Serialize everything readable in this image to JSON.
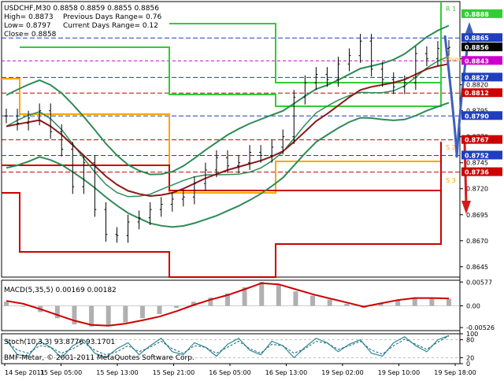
{
  "info": {
    "line1": "USDCHF,M30  0.8858 0.8859 0.8855 0.8856",
    "line2": "High= 0.8873",
    "line2b": "Previous Days Range= 0.76",
    "line3": "Low= 0.8797",
    "line3b": "Current Days Range= 0.12",
    "line4": "Close= 0.8858"
  },
  "pivot_labels": {
    "r1": "R 1",
    "s2": "S 2",
    "s3": "S 3",
    "pivot": "Pivot"
  },
  "copyright": "BMF-Metar, © 2001-2011 MetaQuotes Software Corp.",
  "colors": {
    "price": "#000000",
    "ma_slow": "#8b1a1a",
    "bands": "#2e8b57",
    "pivot_green": "#32cd32",
    "pivot_orange": "#ffa500",
    "pivot_red": "#cc0000",
    "arrow_up": "#3f5fbf",
    "arrow_down": "#d41b1b",
    "macd": "#cc0000",
    "stoch_main": "#2e8b8b",
    "stoch_signal": "#1f5f8f",
    "magenta": "#cc00cc"
  },
  "chart_data": [
    {
      "type": "line",
      "title": "USDCHF,M30",
      "x_labels": [
        "14 Sep 2011",
        "15 Sep 05:00",
        "15 Sep 13:00",
        "15 Sep 21:00",
        "16 Sep 05:00",
        "16 Sep 13:00",
        "19 Sep 02:00",
        "19 Sep 10:00",
        "19 Sep 18:00"
      ],
      "y_ticks": [
        0.8645,
        0.867,
        0.8695,
        0.872,
        0.8745,
        0.877,
        0.8795,
        0.882,
        0.8845
      ],
      "ylim": [
        0.8635,
        0.89
      ],
      "price_tags": [
        {
          "value": "0.8888",
          "color": "#32cd32"
        },
        {
          "value": "0.8865",
          "color": "#1f3fbf"
        },
        {
          "value": "0.8856",
          "color": "#000000"
        },
        {
          "value": "0.8843",
          "color": "#cc00cc"
        },
        {
          "value": "0.8827",
          "color": "#1f3fbf"
        },
        {
          "value": "0.8812",
          "color": "#cc0000"
        },
        {
          "value": "0.8790",
          "color": "#1f3fbf"
        },
        {
          "value": "0.8767",
          "color": "#cc0000"
        },
        {
          "value": "0.8752",
          "color": "#1f3fbf"
        },
        {
          "value": "0.8736",
          "color": "#cc0000"
        }
      ],
      "series": [
        {
          "name": "Close",
          "values": [
            0.879,
            0.8783,
            0.8788,
            0.8795,
            0.8775,
            0.8758,
            0.8722,
            0.8745,
            0.87,
            0.8676,
            0.8675,
            0.8688,
            0.8692,
            0.87,
            0.8705,
            0.871,
            0.8712,
            0.8725,
            0.8738,
            0.875,
            0.8742,
            0.8745,
            0.8755,
            0.8752,
            0.876,
            0.877,
            0.8808,
            0.8822,
            0.883,
            0.8825,
            0.884,
            0.8848,
            0.8862,
            0.8835,
            0.8825,
            0.8818,
            0.8822,
            0.885,
            0.8845,
            0.8855,
            0.8856
          ]
        },
        {
          "name": "MA",
          "values": [
            0.878,
            0.8782,
            0.8784,
            0.8786,
            0.878,
            0.8772,
            0.8762,
            0.8752,
            0.8742,
            0.8732,
            0.8724,
            0.8718,
            0.8715,
            0.8713,
            0.8714,
            0.8716,
            0.872,
            0.8725,
            0.873,
            0.8734,
            0.8738,
            0.8741,
            0.8744,
            0.8747,
            0.8751,
            0.8756,
            0.8765,
            0.8775,
            0.8785,
            0.8792,
            0.88,
            0.8808,
            0.8815,
            0.8818,
            0.882,
            0.8822,
            0.8825,
            0.883,
            0.8835,
            0.8838,
            0.884
          ]
        }
      ]
    },
    {
      "type": "bar",
      "title": "MACD(5,35,5) 0.00169 0.00182",
      "y_ticks": [
        0.00577,
        0.0,
        -0.00526
      ],
      "y_tick_labels": [
        "0.00577",
        "0.00",
        "-0.00526"
      ],
      "ylim": [
        -0.006,
        0.0062
      ],
      "series": [
        {
          "name": "MACD",
          "values": [
            0.001,
            0.0,
            -0.0015,
            -0.003,
            -0.0045,
            -0.005,
            -0.0048,
            -0.004,
            -0.003,
            -0.002,
            -0.0005,
            0.001,
            0.002,
            0.003,
            0.0045,
            0.0058,
            0.005,
            0.0035,
            0.0025,
            0.0015,
            0.0005,
            -0.0005,
            0.0005,
            0.0015,
            0.002,
            0.0018,
            0.0017
          ]
        },
        {
          "name": "Signal",
          "values": [
            0.0012,
            0.0005,
            -0.0008,
            -0.0022,
            -0.0036,
            -0.0046,
            -0.0048,
            -0.0043,
            -0.0035,
            -0.0026,
            -0.0013,
            0.0002,
            0.0015,
            0.0026,
            0.004,
            0.0055,
            0.0052,
            0.004,
            0.0028,
            0.0018,
            0.0008,
            -0.0002,
            0.0006,
            0.0014,
            0.0019,
            0.0019,
            0.0018
          ]
        }
      ]
    },
    {
      "type": "line",
      "title": "Stoch(10,3,3) 93.8776 93.1701",
      "y_ticks": [
        100,
        80,
        20,
        0
      ],
      "ylim": [
        0,
        100
      ],
      "series": [
        {
          "name": "Main",
          "values": [
            80,
            30,
            25,
            75,
            55,
            20,
            60,
            80,
            35,
            20,
            50,
            70,
            30,
            60,
            85,
            40,
            30,
            70,
            55,
            25,
            65,
            85,
            45,
            30,
            75,
            60,
            20,
            55,
            85,
            70,
            40,
            65,
            80,
            35,
            25,
            70,
            90,
            60,
            40,
            80,
            94
          ]
        },
        {
          "name": "Signal",
          "values": [
            75,
            45,
            35,
            60,
            55,
            35,
            50,
            70,
            45,
            30,
            40,
            60,
            40,
            55,
            75,
            50,
            35,
            60,
            55,
            35,
            55,
            75,
            50,
            35,
            65,
            60,
            35,
            50,
            75,
            68,
            48,
            60,
            75,
            45,
            32,
            60,
            82,
            65,
            48,
            72,
            93
          ]
        }
      ]
    }
  ]
}
